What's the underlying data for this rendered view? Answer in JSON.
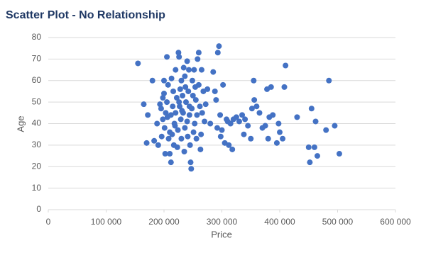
{
  "chart_data": {
    "type": "scatter",
    "title": "Scatter Plot - No Relationship",
    "x_label": "Price",
    "y_label": "Age",
    "color": "#4472c4",
    "grid": true,
    "xlim": [
      0,
      600000
    ],
    "ylim": [
      0,
      80
    ],
    "xticks": [
      0,
      {
        "value": 100000,
        "label": "100 000"
      },
      {
        "value": 200000,
        "label": "200 000"
      },
      {
        "value": 300000,
        "label": "300 000"
      },
      {
        "value": 400000,
        "label": "400 000"
      },
      {
        "value": 500000,
        "label": "500 000"
      },
      {
        "value": 600000,
        "label": "600 000"
      }
    ],
    "yticks": [
      0,
      10,
      20,
      30,
      40,
      50,
      60,
      70,
      80
    ],
    "x": [
      155000,
      165000,
      170000,
      172000,
      180000,
      183000,
      188000,
      190000,
      193000,
      195000,
      196000,
      198000,
      200000,
      200000,
      201000,
      202000,
      203000,
      205000,
      205000,
      207000,
      208000,
      210000,
      210000,
      212000,
      212000,
      213000,
      215000,
      216000,
      217000,
      218000,
      220000,
      220000,
      222000,
      223000,
      224000,
      225000,
      226000,
      227000,
      228000,
      229000,
      230000,
      230000,
      232000,
      233000,
      234000,
      235000,
      236000,
      237000,
      238000,
      240000,
      240000,
      241000,
      242000,
      243000,
      244000,
      245000,
      246000,
      247000,
      248000,
      249000,
      250000,
      251000,
      252000,
      253000,
      255000,
      256000,
      257000,
      258000,
      260000,
      260000,
      262000,
      263000,
      264000,
      265000,
      266000,
      268000,
      270000,
      272000,
      275000,
      280000,
      285000,
      288000,
      290000,
      292000,
      293000,
      295000,
      297000,
      298000,
      300000,
      302000,
      305000,
      308000,
      310000,
      312000,
      315000,
      318000,
      320000,
      325000,
      330000,
      335000,
      338000,
      340000,
      345000,
      350000,
      352000,
      355000,
      356000,
      360000,
      365000,
      370000,
      375000,
      378000,
      380000,
      382000,
      385000,
      388000,
      395000,
      398000,
      400000,
      405000,
      408000,
      410000,
      430000,
      450000,
      452000,
      455000,
      460000,
      462000,
      465000,
      480000,
      485000,
      495000,
      503000,
      198000,
      206000,
      214000,
      226000,
      236000,
      244000,
      254000,
      231000,
      219000
    ],
    "values": [
      68,
      49,
      31,
      44,
      60,
      32,
      40,
      30,
      49,
      47,
      34,
      42,
      60,
      54,
      38,
      26,
      45,
      50,
      71,
      58,
      33,
      26,
      36,
      22,
      44,
      61,
      48,
      55,
      30,
      40,
      45,
      65,
      52,
      29,
      37,
      73,
      71,
      48,
      56,
      42,
      33,
      60,
      53,
      45,
      66,
      27,
      38,
      57,
      50,
      69,
      41,
      34,
      55,
      65,
      44,
      30,
      22,
      19,
      47,
      60,
      53,
      36,
      65,
      40,
      51,
      33,
      44,
      70,
      73,
      58,
      48,
      28,
      35,
      65,
      45,
      55,
      41,
      49,
      56,
      40,
      64,
      55,
      51,
      38,
      73,
      76,
      44,
      34,
      37,
      58,
      31,
      42,
      41,
      30,
      40,
      28,
      42,
      43,
      41,
      44,
      35,
      42,
      39,
      33,
      47,
      60,
      51,
      48,
      45,
      38,
      39,
      56,
      33,
      43,
      57,
      44,
      31,
      40,
      36,
      33,
      57,
      67,
      43,
      29,
      22,
      47,
      29,
      41,
      25,
      37,
      60,
      39,
      26,
      52,
      43,
      35,
      50,
      62,
      48,
      57,
      46,
      39
    ]
  }
}
